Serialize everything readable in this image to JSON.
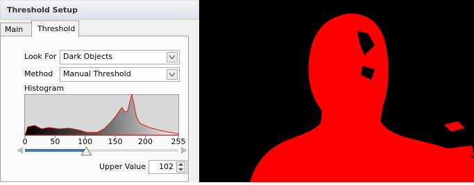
{
  "header": {
    "title": "Threshold Setup"
  },
  "tabs": [
    "Main",
    "Threshold"
  ],
  "fields": [
    {
      "label": "Look For",
      "value": "Dark Objects"
    },
    {
      "label": "Method",
      "value": "Manual Threshold"
    }
  ],
  "histogram": {
    "label": "Histogram",
    "xlim": [
      0,
      255
    ],
    "xticks": [
      0,
      50,
      100,
      150,
      200,
      255
    ]
  },
  "slider": {
    "label": "Upper Value",
    "value": 102
  }
}
